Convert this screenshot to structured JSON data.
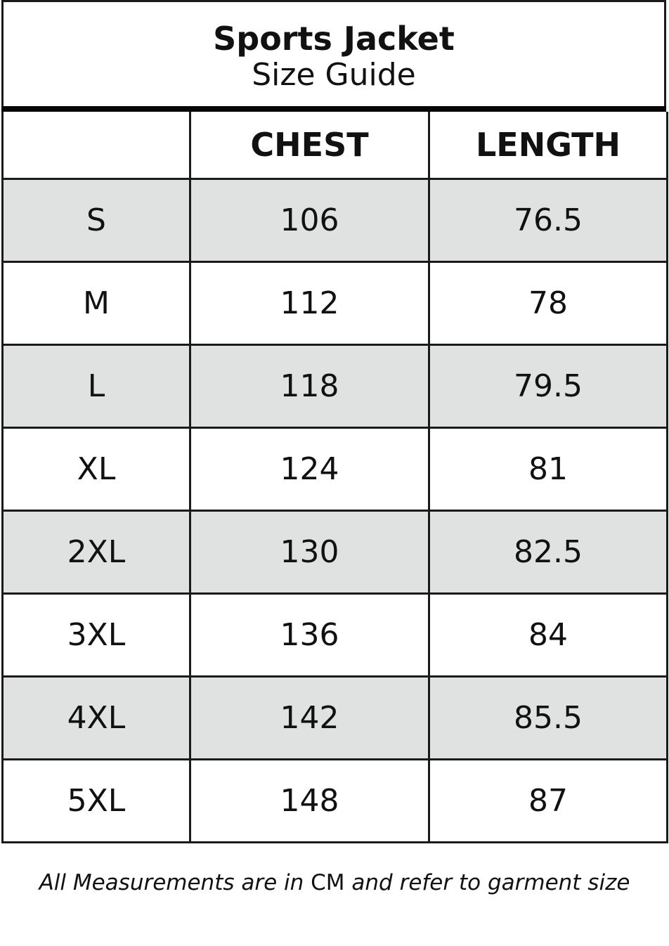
{
  "title": "Sports Jacket",
  "subtitle": "Size Guide",
  "headers": [
    "",
    "CHEST",
    "LENGTH"
  ],
  "rows": [
    [
      "S",
      "106",
      "76.5"
    ],
    [
      "M",
      "112",
      "78"
    ],
    [
      "L",
      "118",
      "79.5"
    ],
    [
      "XL",
      "124",
      "81"
    ],
    [
      "2XL",
      "130",
      "82.5"
    ],
    [
      "3XL",
      "136",
      "84"
    ],
    [
      "4XL",
      "142",
      "85.5"
    ],
    [
      "5XL",
      "148",
      "87"
    ]
  ],
  "footer": {
    "before": "All Measurements are in ",
    "unit": "CM",
    "after": " and refer to garment size"
  },
  "colors": {
    "alt_row": "#e0e2e1",
    "border": "#1a1a1a"
  }
}
